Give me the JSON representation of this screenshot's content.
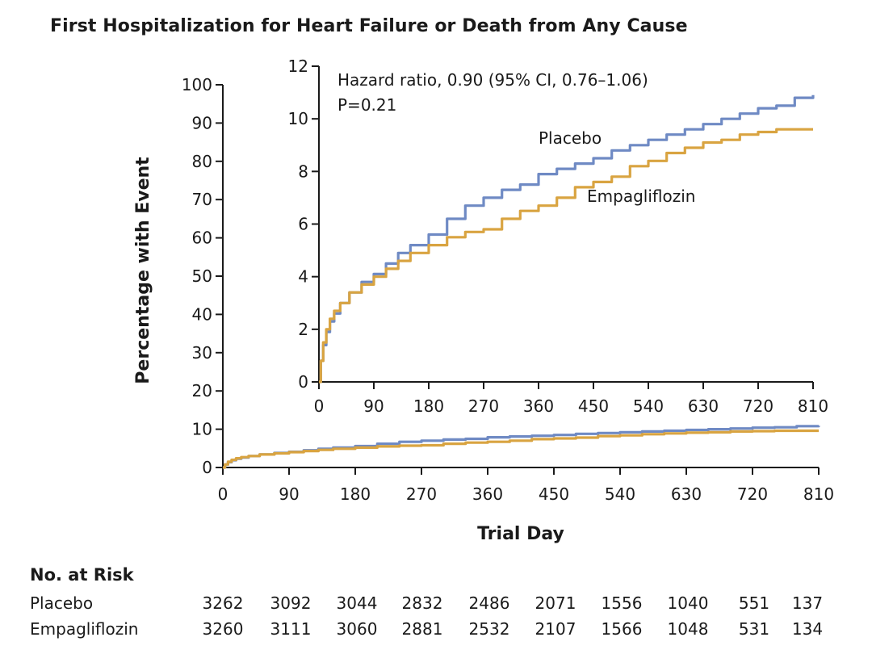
{
  "chart_data": {
    "type": "line",
    "title": "First Hospitalization for Heart Failure or Death from Any Cause",
    "xlabel": "Trial Day",
    "ylabel": "Percentage with Event",
    "xlim": [
      0,
      810
    ],
    "ylim": [
      0,
      100
    ],
    "x_ticks": [
      0,
      90,
      180,
      270,
      360,
      450,
      540,
      630,
      720,
      810
    ],
    "y_ticks": [
      0,
      10,
      20,
      30,
      40,
      50,
      60,
      70,
      80,
      90,
      100
    ],
    "grid": false,
    "colors": {
      "Placebo": "#6f8ac4",
      "Empagliflozin": "#d9a441"
    },
    "series": [
      {
        "name": "Placebo",
        "x": [
          0,
          3,
          7,
          12,
          18,
          25,
          35,
          50,
          70,
          90,
          110,
          130,
          150,
          180,
          210,
          240,
          270,
          300,
          330,
          360,
          390,
          420,
          450,
          480,
          510,
          540,
          570,
          600,
          630,
          660,
          690,
          720,
          750,
          780,
          810
        ],
        "y": [
          0,
          0.8,
          1.4,
          1.9,
          2.3,
          2.6,
          3.0,
          3.4,
          3.8,
          4.1,
          4.5,
          4.9,
          5.2,
          5.6,
          6.2,
          6.7,
          7.0,
          7.3,
          7.5,
          7.9,
          8.1,
          8.3,
          8.5,
          8.8,
          9.0,
          9.2,
          9.4,
          9.6,
          9.8,
          10.0,
          10.2,
          10.4,
          10.5,
          10.8,
          10.9
        ]
      },
      {
        "name": "Empagliflozin",
        "x": [
          0,
          3,
          7,
          12,
          18,
          25,
          35,
          50,
          70,
          90,
          110,
          130,
          150,
          180,
          210,
          240,
          270,
          300,
          330,
          360,
          390,
          420,
          450,
          480,
          510,
          540,
          570,
          600,
          630,
          660,
          690,
          720,
          750,
          780,
          810
        ],
        "y": [
          0,
          0.8,
          1.5,
          2.0,
          2.4,
          2.7,
          3.0,
          3.4,
          3.7,
          4.0,
          4.3,
          4.6,
          4.9,
          5.2,
          5.5,
          5.7,
          5.8,
          6.2,
          6.5,
          6.7,
          7.0,
          7.4,
          7.6,
          7.8,
          8.2,
          8.4,
          8.7,
          8.9,
          9.1,
          9.2,
          9.4,
          9.5,
          9.6,
          9.6,
          9.6
        ]
      }
    ],
    "inset": {
      "xlim": [
        0,
        810
      ],
      "ylim": [
        0,
        12
      ],
      "x_ticks": [
        0,
        90,
        180,
        270,
        360,
        450,
        540,
        630,
        720,
        810
      ],
      "y_ticks": [
        0,
        2,
        4,
        6,
        8,
        10,
        12
      ],
      "annotations": {
        "hazard_ratio": "Hazard ratio, 0.90 (95% CI, 0.76–1.06)",
        "p_value": "P=0.21",
        "placebo_label": "Placebo",
        "empagliflozin_label": "Empagliflozin"
      }
    }
  },
  "risk_table": {
    "title": "No. at Risk",
    "rows": [
      {
        "label": "Placebo",
        "values": [
          3262,
          3092,
          3044,
          2832,
          2486,
          2071,
          1556,
          1040,
          551,
          137
        ]
      },
      {
        "label": "Empagliflozin",
        "values": [
          3260,
          3111,
          3060,
          2881,
          2532,
          2107,
          1566,
          1048,
          531,
          134
        ]
      }
    ]
  }
}
